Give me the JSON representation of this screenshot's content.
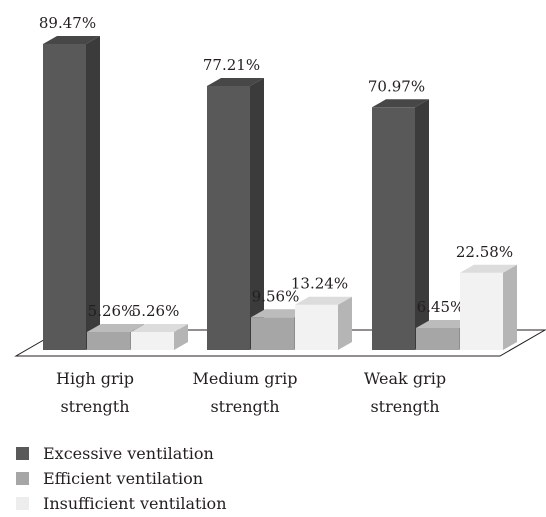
{
  "chart_data": {
    "type": "bar",
    "categories": [
      [
        "High grip",
        "strength"
      ],
      [
        "Medium grip",
        "strength"
      ],
      [
        "Weak grip",
        "strength"
      ]
    ],
    "series": [
      {
        "name": "Excessive ventilation",
        "values": [
          89.47,
          77.21,
          70.97
        ],
        "labels": [
          "89.47%",
          "77.21%",
          "70.97%"
        ]
      },
      {
        "name": "Efficient ventilation",
        "values": [
          5.26,
          9.56,
          6.45
        ],
        "labels": [
          "5.26%",
          "9.56%",
          "6.45%"
        ]
      },
      {
        "name": "Insufficient ventilation",
        "values": [
          5.26,
          13.24,
          22.58
        ],
        "labels": [
          "5.26%",
          "13.24%",
          "22.58%"
        ]
      }
    ],
    "ylim": [
      0,
      100
    ],
    "grid": false,
    "legend_position": "bottom-left",
    "colors": {
      "Excessive ventilation": {
        "front": "#595959",
        "side": "#3b3b3b",
        "top": "#474747"
      },
      "Efficient ventilation": {
        "front": "#a6a6a6",
        "side": "#8e8e8e",
        "top": "#bcbcbc"
      },
      "Insufficient ventilation": {
        "front": "#f2f2f2",
        "side": "#b5b5b5",
        "top": "#dcdcdc"
      }
    }
  },
  "legend": [
    {
      "label": "Excessive ventilation",
      "color": "#595959"
    },
    {
      "label": "Efficient ventilation",
      "color": "#a6a6a6"
    },
    {
      "label": "Insufficient ventilation",
      "color": "#ededed"
    }
  ]
}
